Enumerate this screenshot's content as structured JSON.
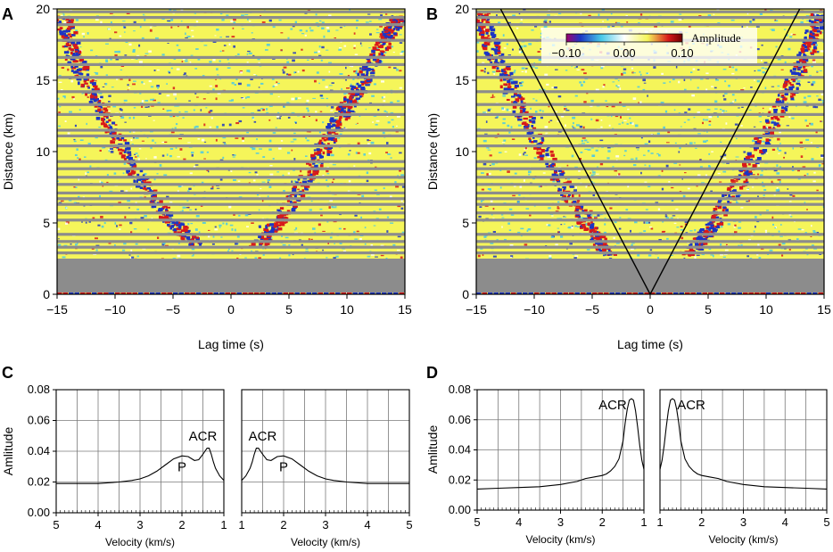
{
  "figure": {
    "panel_labels": [
      "A",
      "B",
      "C",
      "D"
    ],
    "colors": {
      "gray": "#8c8c8c",
      "field": "#f5f55a",
      "red": "#d81a1a",
      "blue": "#1c35c4",
      "cyan": "#46c8e8",
      "white": "#ffffff"
    }
  },
  "chart_data": [
    {
      "id": "A",
      "type": "heatmap",
      "title": "",
      "xlabel": "Lag time (s)",
      "ylabel": "Distance (km)",
      "xlim": [
        -15,
        15
      ],
      "ylim": [
        0,
        20
      ],
      "xticks": [
        -15,
        -10,
        -5,
        0,
        5,
        10,
        15
      ],
      "yticks": [
        0,
        5,
        10,
        15,
        20
      ],
      "xtick_labels": [
        "−15",
        "−10",
        "−5",
        "0",
        "5",
        "10",
        "15"
      ],
      "ytick_labels": [
        "0",
        "5",
        "10",
        "15",
        "20"
      ],
      "gap_below_km": 2.5,
      "trace_gaps_km": [
        2.9,
        3.3,
        3.7,
        4.2,
        5.2,
        5.7,
        6.3,
        6.7,
        7.1,
        7.7,
        8.2,
        8.8,
        9.3,
        10.4,
        11.1,
        11.5,
        12.6,
        13.3,
        14.2,
        15.2,
        16.1,
        16.6,
        17.8,
        18.9,
        19.4,
        19.8
      ],
      "wavefronts": [
        {
          "points": [
            [
              -3.0,
              3.5
            ],
            [
              -5.5,
              5.5
            ],
            [
              -8.5,
              8.8
            ],
            [
              -11.5,
              13.5
            ],
            [
              -13.5,
              16.5
            ],
            [
              -14.5,
              19.5
            ]
          ]
        },
        {
          "points": [
            [
              2.5,
              3.5
            ],
            [
              4.5,
              5.5
            ],
            [
              7.5,
              9.5
            ],
            [
              9.5,
              12.5
            ],
            [
              11.0,
              14.5
            ],
            [
              13.5,
              18.0
            ],
            [
              14.5,
              19.5
            ]
          ]
        }
      ]
    },
    {
      "id": "B",
      "type": "heatmap",
      "title": "",
      "xlabel": "Lag time (s)",
      "ylabel": "Distance (km)",
      "xlim": [
        -15,
        15
      ],
      "ylim": [
        0,
        20
      ],
      "xticks": [
        -15,
        -10,
        -5,
        0,
        5,
        10,
        15
      ],
      "yticks": [
        0,
        5,
        10,
        15,
        20
      ],
      "xtick_labels": [
        "−15",
        "−10",
        "−5",
        "0",
        "5",
        "10",
        "15"
      ],
      "ytick_labels": [
        "0",
        "5",
        "10",
        "15",
        "20"
      ],
      "gap_below_km": 2.5,
      "trace_gaps_km": [
        2.9,
        3.3,
        3.7,
        4.2,
        5.2,
        5.7,
        6.3,
        6.7,
        7.1,
        7.7,
        8.2,
        8.8,
        9.3,
        10.4,
        11.1,
        11.5,
        12.6,
        13.3,
        14.2,
        15.2,
        16.1,
        16.6,
        17.8,
        18.9,
        19.4,
        19.8
      ],
      "wavefronts": [
        {
          "points": [
            [
              -3.5,
              2.8
            ],
            [
              -5.5,
              5.0
            ],
            [
              -8.5,
              9.0
            ],
            [
              -11.5,
              13.5
            ],
            [
              -13.5,
              17.0
            ],
            [
              -14.7,
              19.7
            ]
          ]
        },
        {
          "points": [
            [
              3.5,
              2.8
            ],
            [
              5.5,
              5.0
            ],
            [
              8.5,
              9.0
            ],
            [
              11.5,
              13.5
            ],
            [
              13.5,
              17.0
            ],
            [
              14.7,
              19.7
            ]
          ]
        }
      ],
      "reference_lines": [
        {
          "from": [
            0,
            0
          ],
          "to": [
            -12.9,
            20
          ]
        },
        {
          "from": [
            0,
            0
          ],
          "to": [
            12.9,
            20
          ]
        }
      ],
      "colorbar": {
        "label": "Amplitude",
        "ticks": [
          -0.1,
          0.0,
          0.1
        ],
        "tick_labels": [
          "−0.10",
          "0.00",
          "0.10"
        ]
      }
    },
    {
      "id": "C",
      "type": "line",
      "title": "",
      "ylabel": "Amlitude",
      "ylim": [
        0,
        0.08
      ],
      "yticks": [
        0,
        0.02,
        0.04,
        0.06,
        0.08
      ],
      "ytick_labels": [
        "0.00",
        "0.02",
        "0.04",
        "0.06",
        "0.08"
      ],
      "subplots": [
        {
          "xlabel": "Velocity (km/s)",
          "xlim": [
            5,
            1
          ],
          "xticks": [
            5,
            4,
            3,
            2,
            1
          ],
          "xtick_labels": [
            "5",
            "4",
            "3",
            "2",
            "1"
          ],
          "series": [
            {
              "name": "",
              "x": [
                5.0,
                4.5,
                4.0,
                3.5,
                3.2,
                3.0,
                2.8,
                2.6,
                2.4,
                2.2,
                2.0,
                1.85,
                1.7,
                1.6,
                1.5,
                1.45,
                1.4,
                1.35,
                1.3,
                1.25,
                1.2,
                1.1,
                1.0
              ],
              "y": [
                0.019,
                0.019,
                0.019,
                0.02,
                0.021,
                0.022,
                0.024,
                0.027,
                0.031,
                0.035,
                0.037,
                0.0365,
                0.034,
                0.0345,
                0.038,
                0.04,
                0.042,
                0.042,
                0.038,
                0.033,
                0.029,
                0.024,
                0.021
              ]
            }
          ],
          "annotations": [
            {
              "text": "ACR",
              "x": 1.5,
              "y": 0.047
            },
            {
              "text": "P",
              "x": 2.0,
              "y": 0.027
            }
          ]
        },
        {
          "xlabel": "Velocity (km/s)",
          "xlim": [
            1,
            5
          ],
          "xticks": [
            1,
            2,
            3,
            4,
            5
          ],
          "xtick_labels": [
            "1",
            "2",
            "3",
            "4",
            "5"
          ],
          "series": [
            {
              "name": "",
              "x": [
                1.0,
                1.1,
                1.2,
                1.25,
                1.3,
                1.35,
                1.4,
                1.45,
                1.5,
                1.6,
                1.7,
                1.85,
                2.0,
                2.2,
                2.4,
                2.6,
                2.8,
                3.0,
                3.2,
                3.5,
                4.0,
                4.5,
                5.0
              ],
              "y": [
                0.021,
                0.024,
                0.029,
                0.033,
                0.038,
                0.042,
                0.042,
                0.04,
                0.038,
                0.0345,
                0.034,
                0.0365,
                0.037,
                0.035,
                0.031,
                0.027,
                0.024,
                0.022,
                0.021,
                0.02,
                0.019,
                0.019,
                0.019
              ]
            }
          ],
          "annotations": [
            {
              "text": "ACR",
              "x": 1.5,
              "y": 0.047
            },
            {
              "text": "P",
              "x": 2.0,
              "y": 0.027
            }
          ]
        }
      ]
    },
    {
      "id": "D",
      "type": "line",
      "title": "",
      "ylabel": "Amlitude",
      "ylim": [
        0,
        0.08
      ],
      "yticks": [
        0,
        0.02,
        0.04,
        0.06,
        0.08
      ],
      "ytick_labels": [
        "0.00",
        "0.02",
        "0.04",
        "0.06",
        "0.08"
      ],
      "subplots": [
        {
          "xlabel": "Velocity (km/s)",
          "xlim": [
            5,
            1
          ],
          "xticks": [
            5,
            4,
            3,
            2,
            1
          ],
          "xtick_labels": [
            "5",
            "4",
            "3",
            "2",
            "1"
          ],
          "series": [
            {
              "name": "",
              "x": [
                5.0,
                4.5,
                4.0,
                3.5,
                3.0,
                2.6,
                2.4,
                2.2,
                2.0,
                1.9,
                1.8,
                1.7,
                1.6,
                1.5,
                1.45,
                1.4,
                1.35,
                1.3,
                1.25,
                1.2,
                1.15,
                1.1,
                1.05,
                1.0
              ],
              "y": [
                0.014,
                0.0145,
                0.015,
                0.0155,
                0.017,
                0.019,
                0.021,
                0.022,
                0.023,
                0.024,
                0.026,
                0.029,
                0.034,
                0.046,
                0.058,
                0.067,
                0.073,
                0.074,
                0.073,
                0.066,
                0.055,
                0.043,
                0.033,
                0.027
              ]
            }
          ],
          "annotations": [
            {
              "text": "ACR",
              "x": 1.75,
              "y": 0.067
            }
          ]
        },
        {
          "xlabel": "Velocity (km/s)",
          "xlim": [
            1,
            5
          ],
          "xticks": [
            1,
            2,
            3,
            4,
            5
          ],
          "xtick_labels": [
            "1",
            "2",
            "3",
            "4",
            "5"
          ],
          "series": [
            {
              "name": "",
              "x": [
                1.0,
                1.05,
                1.1,
                1.15,
                1.2,
                1.25,
                1.3,
                1.35,
                1.4,
                1.45,
                1.5,
                1.6,
                1.7,
                1.8,
                1.9,
                2.0,
                2.2,
                2.4,
                2.6,
                3.0,
                3.5,
                4.0,
                4.5,
                5.0
              ],
              "y": [
                0.027,
                0.033,
                0.043,
                0.055,
                0.066,
                0.073,
                0.074,
                0.073,
                0.067,
                0.058,
                0.046,
                0.034,
                0.029,
                0.026,
                0.024,
                0.023,
                0.022,
                0.021,
                0.019,
                0.017,
                0.0155,
                0.015,
                0.0145,
                0.014
              ]
            }
          ],
          "annotations": [
            {
              "text": "ACR",
              "x": 1.75,
              "y": 0.067
            }
          ]
        }
      ]
    }
  ]
}
